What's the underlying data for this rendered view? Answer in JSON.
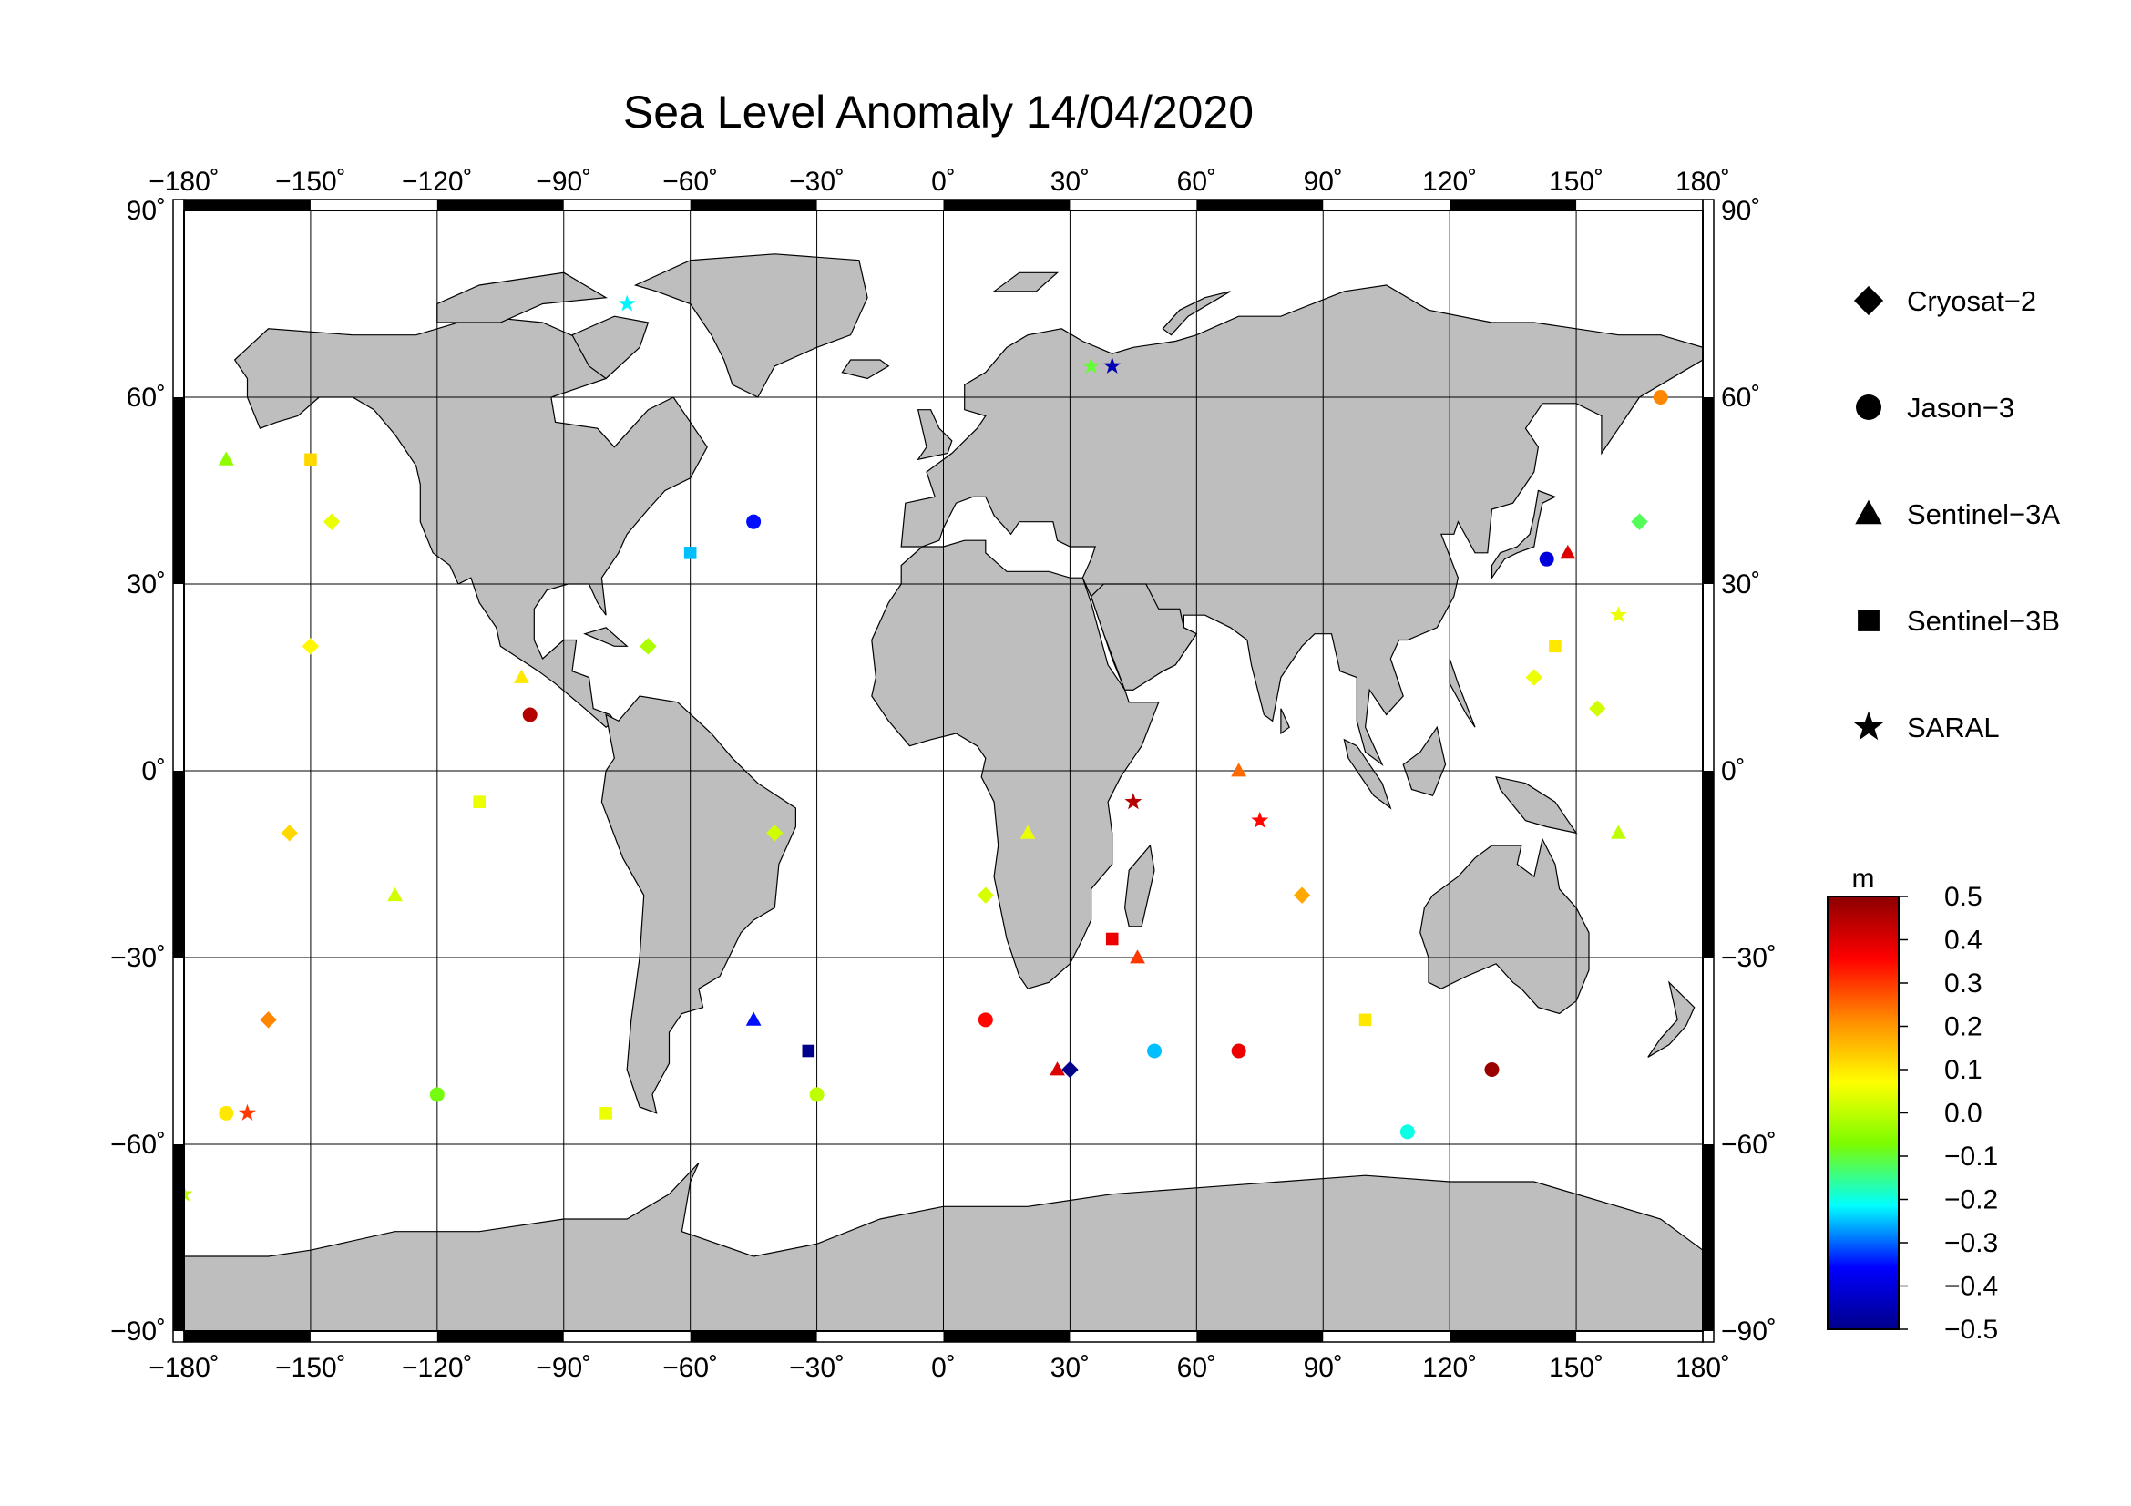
{
  "title": "Sea Level Anomaly 14/04/2020",
  "map": {
    "lon_range": [
      -180,
      180
    ],
    "lat_range": [
      -90,
      90
    ],
    "lon_ticks": [
      -180,
      -150,
      -120,
      -90,
      -60,
      -30,
      0,
      30,
      60,
      90,
      120,
      150,
      180
    ],
    "lat_ticks": [
      -90,
      -60,
      -30,
      0,
      30,
      60,
      90
    ],
    "lon_tick_labels": [
      "−180˚",
      "−150˚",
      "−120˚",
      "−90˚",
      "−60˚",
      "−30˚",
      "0˚",
      "30˚",
      "60˚",
      "90˚",
      "120˚",
      "150˚",
      "180˚"
    ],
    "lat_tick_labels_left": [
      "−90˚",
      "−60˚",
      "−30˚",
      "0˚",
      "30˚",
      "60˚",
      "90˚"
    ],
    "lat_tick_labels_right": [
      "−90˚",
      "−60˚",
      "−30˚",
      "0˚",
      "30˚",
      "60˚",
      "90˚"
    ],
    "grid": true,
    "land_color": "#bebebe",
    "ocean_color": "#ffffff"
  },
  "legend": {
    "placement": "right",
    "items": [
      {
        "label": "Cryosat−2",
        "marker": "diamond"
      },
      {
        "label": "Jason−3",
        "marker": "circle"
      },
      {
        "label": "Sentinel−3A",
        "marker": "triangle"
      },
      {
        "label": "Sentinel−3B",
        "marker": "square"
      },
      {
        "label": "SARAL",
        "marker": "star"
      }
    ]
  },
  "colorbar": {
    "unit": "m",
    "min": -0.5,
    "max": 0.5,
    "tick_labels": [
      "0.5",
      "0.4",
      "0.3",
      "0.2",
      "0.1",
      "0.0",
      "−0.1",
      "−0.2",
      "−0.3",
      "−0.4",
      "−0.5"
    ],
    "colors": [
      "#8b0000",
      "#ff0000",
      "#ff8c00",
      "#ffff00",
      "#7cfc00",
      "#00ffff",
      "#0000ff",
      "#00008b"
    ]
  },
  "chart_data": {
    "type": "scatter",
    "title": "Sea Level Anomaly 14/04/2020",
    "xlabel": "",
    "ylabel": "",
    "x_range": [
      -180,
      180
    ],
    "y_range": [
      -90,
      90
    ],
    "value_unit": "m",
    "value_range": [
      -0.5,
      0.5
    ],
    "series": [
      {
        "name": "Cryosat−2",
        "marker": "diamond",
        "points": [
          {
            "lon": -145,
            "lat": 40,
            "v": 0.05
          },
          {
            "lon": -150,
            "lat": 20,
            "v": 0.08
          },
          {
            "lon": -155,
            "lat": -10,
            "v": 0.12
          },
          {
            "lon": -160,
            "lat": -40,
            "v": 0.22
          },
          {
            "lon": -70,
            "lat": 20,
            "v": -0.02
          },
          {
            "lon": -40,
            "lat": -10,
            "v": 0.02
          },
          {
            "lon": 10,
            "lat": -20,
            "v": 0.03
          },
          {
            "lon": 30,
            "lat": -48,
            "v": -0.5
          },
          {
            "lon": 85,
            "lat": -20,
            "v": 0.18
          },
          {
            "lon": 140,
            "lat": 15,
            "v": 0.05
          },
          {
            "lon": 165,
            "lat": 40,
            "v": -0.12
          },
          {
            "lon": 155,
            "lat": 10,
            "v": 0.02
          }
        ]
      },
      {
        "name": "Jason−3",
        "marker": "circle",
        "points": [
          {
            "lon": -170,
            "lat": -55,
            "v": 0.1
          },
          {
            "lon": -120,
            "lat": -52,
            "v": -0.08
          },
          {
            "lon": -98,
            "lat": 9,
            "v": 0.45
          },
          {
            "lon": -45,
            "lat": 40,
            "v": -0.35
          },
          {
            "lon": -30,
            "lat": -52,
            "v": 0.0
          },
          {
            "lon": 10,
            "lat": -40,
            "v": 0.35
          },
          {
            "lon": 50,
            "lat": -45,
            "v": -0.25
          },
          {
            "lon": 70,
            "lat": -45,
            "v": 0.38
          },
          {
            "lon": 110,
            "lat": -58,
            "v": -0.2
          },
          {
            "lon": 130,
            "lat": -48,
            "v": 0.48
          },
          {
            "lon": 143,
            "lat": 34,
            "v": -0.4
          },
          {
            "lon": 170,
            "lat": 60,
            "v": 0.22
          }
        ]
      },
      {
        "name": "Sentinel−3A",
        "marker": "triangle",
        "points": [
          {
            "lon": -170,
            "lat": 50,
            "v": -0.05
          },
          {
            "lon": -130,
            "lat": -20,
            "v": 0.02
          },
          {
            "lon": -100,
            "lat": 15,
            "v": 0.1
          },
          {
            "lon": -45,
            "lat": -40,
            "v": -0.35
          },
          {
            "lon": 20,
            "lat": -10,
            "v": 0.05
          },
          {
            "lon": 27,
            "lat": -48,
            "v": 0.4
          },
          {
            "lon": 46,
            "lat": -30,
            "v": 0.3
          },
          {
            "lon": 70,
            "lat": 0,
            "v": 0.25
          },
          {
            "lon": 148,
            "lat": 35,
            "v": 0.4
          },
          {
            "lon": 160,
            "lat": -10,
            "v": 0.0
          }
        ]
      },
      {
        "name": "Sentinel−3B",
        "marker": "square",
        "points": [
          {
            "lon": -150,
            "lat": 50,
            "v": 0.12
          },
          {
            "lon": -110,
            "lat": -5,
            "v": 0.05
          },
          {
            "lon": -32,
            "lat": -45,
            "v": -0.5
          },
          {
            "lon": -60,
            "lat": 35,
            "v": -0.25
          },
          {
            "lon": 40,
            "lat": -27,
            "v": 0.38
          },
          {
            "lon": 100,
            "lat": -40,
            "v": 0.1
          },
          {
            "lon": 145,
            "lat": 20,
            "v": 0.1
          },
          {
            "lon": -80,
            "lat": -55,
            "v": 0.05
          }
        ]
      },
      {
        "name": "SARAL",
        "marker": "star",
        "points": [
          {
            "lon": -75,
            "lat": 75,
            "v": -0.22
          },
          {
            "lon": 40,
            "lat": 65,
            "v": -0.45
          },
          {
            "lon": 35,
            "lat": 65,
            "v": -0.1
          },
          {
            "lon": -165,
            "lat": -55,
            "v": 0.3
          },
          {
            "lon": -180,
            "lat": -68,
            "v": 0.0
          },
          {
            "lon": 45,
            "lat": -5,
            "v": 0.45
          },
          {
            "lon": 75,
            "lat": -8,
            "v": 0.35
          },
          {
            "lon": 160,
            "lat": 25,
            "v": 0.05
          }
        ]
      }
    ]
  }
}
